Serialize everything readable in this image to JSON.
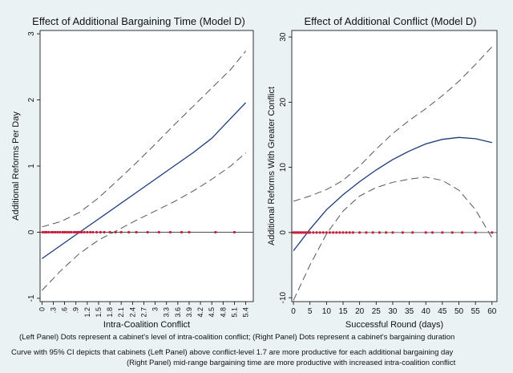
{
  "chart_data": [
    {
      "type": "line",
      "title": "Effect of Additional Bargaining Time (Model D)",
      "xlabel": "Intra-Coalition Conflict",
      "ylabel": "Additional Reforms Per Day",
      "xlim": [
        -0.05,
        5.6
      ],
      "ylim": [
        -1.05,
        3.05
      ],
      "xticks": [
        "0",
        ".3",
        ".6",
        ".9",
        "1.2",
        "1.5",
        "1.8",
        "2.1",
        "2.4",
        "2.7",
        "3",
        "3.3",
        "3.6",
        "3.9",
        "4.2",
        "4.5",
        "4.8",
        "5.1",
        "5.4"
      ],
      "xtick_values": [
        0,
        0.3,
        0.6,
        0.9,
        1.2,
        1.5,
        1.8,
        2.1,
        2.4,
        2.7,
        3.0,
        3.3,
        3.6,
        3.9,
        4.2,
        4.5,
        4.8,
        5.1,
        5.4
      ],
      "yticks": [
        "-1",
        "0",
        "1",
        "2",
        "3"
      ],
      "ytick_values": [
        -1,
        0,
        1,
        2,
        3
      ],
      "series": [
        {
          "name": "Estimate",
          "style": "solid",
          "color": "#1a3a7a",
          "x": [
            0,
            0.5,
            1.0,
            1.5,
            2.0,
            2.5,
            3.0,
            3.5,
            4.0,
            4.5,
            5.0,
            5.4
          ],
          "y": [
            -0.4,
            -0.2,
            0.0,
            0.2,
            0.4,
            0.6,
            0.8,
            1.0,
            1.2,
            1.42,
            1.72,
            1.96
          ]
        },
        {
          "name": "Upper 95% CI",
          "style": "dashed",
          "color": "#555555",
          "x": [
            0,
            0.5,
            1.0,
            1.5,
            2.0,
            2.5,
            3.0,
            3.5,
            4.0,
            4.5,
            5.0,
            5.4
          ],
          "y": [
            0.08,
            0.16,
            0.3,
            0.52,
            0.78,
            1.05,
            1.33,
            1.62,
            1.9,
            2.18,
            2.46,
            2.74
          ]
        },
        {
          "name": "Lower 95% CI",
          "style": "dashed",
          "color": "#555555",
          "x": [
            0,
            0.5,
            1.0,
            1.5,
            2.0,
            2.5,
            3.0,
            3.5,
            4.0,
            4.5,
            5.0,
            5.4
          ],
          "y": [
            -0.88,
            -0.58,
            -0.32,
            -0.12,
            0.03,
            0.18,
            0.32,
            0.46,
            0.62,
            0.8,
            1.0,
            1.2
          ]
        }
      ],
      "points": {
        "name": "cabinet intra-coalition conflict",
        "color": "#c8203c",
        "y": 0,
        "x": [
          0.02,
          0.08,
          0.12,
          0.18,
          0.25,
          0.3,
          0.36,
          0.42,
          0.48,
          0.55,
          0.6,
          0.66,
          0.72,
          0.78,
          0.85,
          0.9,
          0.95,
          1.0,
          1.05,
          1.12,
          1.2,
          1.28,
          1.35,
          1.45,
          1.55,
          1.65,
          1.8,
          1.95,
          2.1,
          2.3,
          2.5,
          2.8,
          3.1,
          3.4,
          3.7,
          3.9,
          4.6,
          5.1
        ]
      }
    },
    {
      "type": "line",
      "title": "Effect of Additional Conflict (Model D)",
      "xlabel": "Successful Round (days)",
      "ylabel": "Additional Reforms With Greater Conflict",
      "xlim": [
        -0.5,
        61.5
      ],
      "ylim": [
        -10.6,
        31
      ],
      "xticks": [
        "0",
        "5",
        "10",
        "15",
        "20",
        "25",
        "30",
        "35",
        "40",
        "45",
        "50",
        "55",
        "60"
      ],
      "xtick_values": [
        0,
        5,
        10,
        15,
        20,
        25,
        30,
        35,
        40,
        45,
        50,
        55,
        60
      ],
      "yticks": [
        "-10",
        "0",
        "10",
        "20",
        "30"
      ],
      "ytick_values": [
        -10,
        0,
        10,
        20,
        30
      ],
      "series": [
        {
          "name": "Estimate",
          "style": "solid",
          "color": "#1a3a7a",
          "x": [
            0,
            5,
            10,
            15,
            20,
            25,
            30,
            35,
            40,
            45,
            50,
            55,
            60
          ],
          "y": [
            -2.8,
            0.5,
            3.5,
            5.8,
            7.8,
            9.6,
            11.2,
            12.5,
            13.6,
            14.3,
            14.6,
            14.4,
            13.8
          ]
        },
        {
          "name": "Upper 95% CI",
          "style": "dashed",
          "color": "#555555",
          "x": [
            0,
            5,
            10,
            15,
            20,
            25,
            30,
            35,
            40,
            45,
            50,
            55,
            60
          ],
          "y": [
            4.8,
            5.6,
            6.6,
            8.0,
            10.2,
            12.8,
            15.2,
            17.2,
            19.0,
            21.0,
            23.2,
            25.8,
            28.5
          ]
        },
        {
          "name": "Lower 95% CI",
          "style": "dashed",
          "color": "#555555",
          "x": [
            0,
            5,
            10,
            15,
            20,
            25,
            30,
            35,
            40,
            45,
            50,
            55,
            60
          ],
          "y": [
            -10.4,
            -5.0,
            -0.2,
            3.3,
            5.6,
            6.9,
            7.7,
            8.2,
            8.5,
            8.0,
            6.5,
            3.5,
            -0.8
          ]
        }
      ],
      "points": {
        "name": "cabinet bargaining duration",
        "color": "#c8203c",
        "y": 0,
        "x": [
          0,
          0.5,
          1,
          1.5,
          2,
          2.5,
          3,
          3.5,
          4,
          4.5,
          5,
          6,
          7,
          8,
          9,
          10,
          11,
          12,
          13,
          14,
          15,
          16,
          17,
          18,
          20,
          22,
          24,
          26,
          28,
          30,
          33,
          36,
          40,
          42,
          45,
          48,
          51,
          55,
          60
        ]
      }
    }
  ],
  "notes": {
    "line1": "(Left Panel) Dots represent a cabinet's level of intra-coalition conflict; (Right Panel) Dots represent a cabinet's bargaining duration",
    "line2": "Curve with 95% CI depicts that cabinets (Left Panel) above conflict-level 1.7 are more productive for each additional bargaining day",
    "line3": "(Right Panel) mid-range bargaining time are more productive with increased intra-coalition conflict"
  }
}
